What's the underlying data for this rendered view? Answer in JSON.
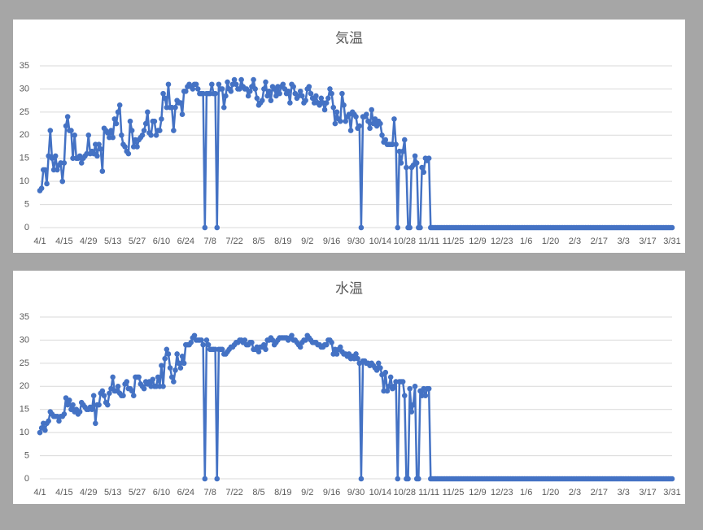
{
  "chart_data": [
    {
      "type": "line",
      "title": "気温",
      "color": "#4472c4",
      "ylim": [
        0,
        35
      ],
      "yticks": [
        0,
        5,
        10,
        15,
        20,
        25,
        30,
        35
      ],
      "grid": true,
      "categories": [
        "4/1",
        null,
        null,
        null,
        null,
        null,
        null,
        null,
        null,
        null,
        null,
        null,
        null,
        null,
        "4/15",
        null,
        null,
        null,
        null,
        null,
        null,
        null,
        null,
        null,
        null,
        null,
        null,
        null,
        "4/29",
        null,
        null,
        null,
        null,
        null,
        null,
        null,
        null,
        null,
        null,
        null,
        null,
        null,
        "5/13",
        null,
        null,
        null,
        null,
        null,
        null,
        null,
        null,
        null,
        null,
        null,
        null,
        null,
        "5/27",
        null,
        null,
        null,
        null,
        null,
        null,
        null,
        null,
        null,
        null,
        null,
        null,
        null,
        "6/10",
        null,
        null,
        null,
        null,
        null,
        null,
        null,
        null,
        null,
        null,
        null,
        null,
        null,
        "6/24",
        null,
        null,
        null,
        null,
        null,
        null,
        null,
        null,
        null,
        null,
        null,
        null,
        null,
        "7/8",
        null,
        null,
        null,
        null,
        null,
        null,
        null,
        null,
        null,
        null,
        null,
        null,
        null,
        "7/22",
        null,
        null,
        null,
        null,
        null,
        null,
        null,
        null,
        null,
        null,
        null,
        null,
        null,
        "8/5",
        null,
        null,
        null,
        null,
        null,
        null,
        null,
        null,
        null,
        null,
        null,
        null,
        null,
        "8/19",
        null,
        null,
        null,
        null,
        null,
        null,
        null,
        null,
        null,
        null,
        null,
        null,
        null,
        "9/2",
        null,
        null,
        null,
        null,
        null,
        null,
        null,
        null,
        null,
        null,
        null,
        null,
        null,
        "9/16",
        null,
        null,
        null,
        null,
        null,
        null,
        null,
        null,
        null,
        null,
        null,
        null,
        null,
        "9/30",
        null,
        null,
        null,
        null,
        null,
        null,
        null,
        null,
        null,
        null,
        null,
        null,
        null,
        "10/14",
        null,
        null,
        null,
        null,
        null,
        null,
        null,
        null,
        null,
        null,
        null,
        null,
        null,
        "10/28",
        null,
        null,
        null,
        null,
        null,
        null,
        null,
        null,
        null,
        null,
        null,
        null,
        null,
        "11/11",
        null,
        null,
        null,
        null,
        null,
        null,
        null,
        null,
        null,
        null,
        null,
        null,
        null,
        "11/25",
        null,
        null,
        null,
        null,
        null,
        null,
        null,
        null,
        null,
        null,
        null,
        null,
        null,
        "12/9",
        null,
        null,
        null,
        null,
        null,
        null,
        null,
        null,
        null,
        null,
        null,
        null,
        null,
        "12/23",
        null,
        null,
        null,
        null,
        null,
        null,
        null,
        null,
        null,
        null,
        null,
        null,
        null,
        "1/6",
        null,
        null,
        null,
        null,
        null,
        null,
        null,
        null,
        null,
        null,
        null,
        null,
        null,
        "1/20",
        null,
        null,
        null,
        null,
        null,
        null,
        null,
        null,
        null,
        null,
        null,
        null,
        null,
        "2/3",
        null,
        null,
        null,
        null,
        null,
        null,
        null,
        null,
        null,
        null,
        null,
        null,
        null,
        "2/17",
        null,
        null,
        null,
        null,
        null,
        null,
        null,
        null,
        null,
        null,
        null,
        null,
        null,
        "3/3",
        null,
        null,
        null,
        null,
        null,
        null,
        null,
        null,
        null,
        null,
        null,
        null,
        null,
        "3/17",
        null,
        null,
        null,
        null,
        null,
        null,
        null,
        null,
        null,
        null,
        null,
        null,
        null,
        "3/31"
      ],
      "values": [
        8,
        8.5,
        12.5,
        12.5,
        9.5,
        15.5,
        21,
        15,
        12.5,
        15.5,
        12.5,
        13.5,
        14,
        10,
        14,
        22,
        24,
        21,
        21,
        15,
        20,
        15,
        15,
        15.5,
        14,
        15,
        15.5,
        16,
        20,
        16,
        16.5,
        16,
        18,
        15.5,
        18,
        17,
        12.2,
        21.5,
        21,
        20.5,
        19.5,
        21,
        19.5,
        23.5,
        22.5,
        25,
        26.5,
        20,
        18,
        17.5,
        16.5,
        16,
        23,
        21,
        17.5,
        19,
        17.5,
        19,
        19.5,
        20,
        21,
        22.5,
        25,
        20.5,
        20,
        23,
        23,
        20,
        21,
        21,
        23.5,
        29,
        28,
        26,
        31,
        26,
        26,
        21,
        26,
        27.5,
        27,
        27,
        24.5,
        29.5,
        29.5,
        30.5,
        31,
        30.5,
        30,
        31,
        31,
        30,
        29,
        29,
        29,
        0,
        29,
        29,
        29,
        31,
        29,
        29,
        0,
        31,
        30,
        30,
        26,
        28.5,
        31.5,
        30,
        29.5,
        31,
        32,
        31,
        30,
        30,
        32,
        30.5,
        30,
        30,
        28.5,
        29.5,
        30.5,
        32,
        30,
        28,
        26.5,
        27,
        27.5,
        30,
        31.5,
        28.5,
        29.5,
        27.5,
        30.5,
        30,
        28.5,
        30.5,
        29,
        30.5,
        31,
        30,
        29,
        29.5,
        27,
        31,
        30.5,
        29,
        28,
        28.5,
        29.5,
        28.5,
        27,
        27.5,
        30,
        30.5,
        29,
        28,
        27,
        28.5,
        27,
        26.5,
        28,
        27,
        25.5,
        27,
        28,
        30,
        29,
        26,
        22.5,
        25,
        23.5,
        23,
        29,
        26.5,
        23,
        24,
        24.5,
        21,
        25,
        24.5,
        24,
        21.5,
        22,
        0,
        24,
        24,
        24.5,
        23,
        21.5,
        25.5,
        22.5,
        23.5,
        22,
        23,
        22.5,
        20,
        18.5,
        19,
        18,
        18,
        18,
        18,
        23.5,
        18,
        0,
        16.5,
        14,
        16.5,
        19,
        13,
        0,
        0,
        13,
        13.5,
        15.5,
        14,
        0,
        0,
        13,
        12,
        15,
        14.5,
        15,
        0,
        0,
        0,
        0,
        0,
        0,
        0,
        0,
        0,
        0,
        0,
        0,
        0,
        0,
        0,
        0,
        0,
        0,
        0,
        0,
        0,
        0,
        0,
        0,
        0,
        0,
        0,
        0,
        0,
        0,
        0,
        0,
        0,
        0,
        0,
        0,
        0,
        0,
        0,
        0,
        0,
        0,
        0,
        0,
        0,
        0,
        0,
        0,
        0,
        0,
        0,
        0,
        0,
        0,
        0,
        0,
        0,
        0,
        0,
        0,
        0,
        0,
        0,
        0,
        0,
        0,
        0,
        0,
        0,
        0,
        0,
        0,
        0,
        0,
        0,
        0,
        0,
        0,
        0,
        0,
        0,
        0,
        0,
        0,
        0,
        0,
        0,
        0,
        0,
        0,
        0,
        0,
        0,
        0,
        0,
        0,
        0,
        0,
        0,
        0,
        0,
        0,
        0,
        0,
        0,
        0,
        0,
        0,
        0,
        0,
        0,
        0,
        0,
        0,
        0,
        0,
        0,
        0,
        0,
        0,
        0,
        0,
        0,
        0,
        0,
        0,
        0,
        0,
        0,
        0,
        0,
        0,
        0,
        0,
        0,
        0,
        0,
        0,
        0,
        0
      ]
    },
    {
      "type": "line",
      "title": "水温",
      "color": "#4472c4",
      "ylim": [
        0,
        35
      ],
      "yticks": [
        0,
        5,
        10,
        15,
        20,
        25,
        30,
        35
      ],
      "grid": true,
      "categories": [
        "4/1",
        null,
        null,
        null,
        null,
        null,
        null,
        null,
        null,
        null,
        null,
        null,
        null,
        null,
        "4/15",
        null,
        null,
        null,
        null,
        null,
        null,
        null,
        null,
        null,
        null,
        null,
        null,
        null,
        "4/29",
        null,
        null,
        null,
        null,
        null,
        null,
        null,
        null,
        null,
        null,
        null,
        null,
        null,
        "5/13",
        null,
        null,
        null,
        null,
        null,
        null,
        null,
        null,
        null,
        null,
        null,
        null,
        null,
        "5/27",
        null,
        null,
        null,
        null,
        null,
        null,
        null,
        null,
        null,
        null,
        null,
        null,
        null,
        "6/10",
        null,
        null,
        null,
        null,
        null,
        null,
        null,
        null,
        null,
        null,
        null,
        null,
        null,
        "6/24",
        null,
        null,
        null,
        null,
        null,
        null,
        null,
        null,
        null,
        null,
        null,
        null,
        null,
        "7/8",
        null,
        null,
        null,
        null,
        null,
        null,
        null,
        null,
        null,
        null,
        null,
        null,
        null,
        "7/22",
        null,
        null,
        null,
        null,
        null,
        null,
        null,
        null,
        null,
        null,
        null,
        null,
        null,
        "8/5",
        null,
        null,
        null,
        null,
        null,
        null,
        null,
        null,
        null,
        null,
        null,
        null,
        null,
        "8/19",
        null,
        null,
        null,
        null,
        null,
        null,
        null,
        null,
        null,
        null,
        null,
        null,
        null,
        "9/2",
        null,
        null,
        null,
        null,
        null,
        null,
        null,
        null,
        null,
        null,
        null,
        null,
        null,
        "9/16",
        null,
        null,
        null,
        null,
        null,
        null,
        null,
        null,
        null,
        null,
        null,
        null,
        null,
        "9/30",
        null,
        null,
        null,
        null,
        null,
        null,
        null,
        null,
        null,
        null,
        null,
        null,
        null,
        "10/14",
        null,
        null,
        null,
        null,
        null,
        null,
        null,
        null,
        null,
        null,
        null,
        null,
        null,
        "10/28",
        null,
        null,
        null,
        null,
        null,
        null,
        null,
        null,
        null,
        null,
        null,
        null,
        null,
        "11/11",
        null,
        null,
        null,
        null,
        null,
        null,
        null,
        null,
        null,
        null,
        null,
        null,
        null,
        "11/25",
        null,
        null,
        null,
        null,
        null,
        null,
        null,
        null,
        null,
        null,
        null,
        null,
        null,
        "12/9",
        null,
        null,
        null,
        null,
        null,
        null,
        null,
        null,
        null,
        null,
        null,
        null,
        null,
        "12/23",
        null,
        null,
        null,
        null,
        null,
        null,
        null,
        null,
        null,
        null,
        null,
        null,
        null,
        "1/6",
        null,
        null,
        null,
        null,
        null,
        null,
        null,
        null,
        null,
        null,
        null,
        null,
        null,
        "1/20",
        null,
        null,
        null,
        null,
        null,
        null,
        null,
        null,
        null,
        null,
        null,
        null,
        null,
        "2/3",
        null,
        null,
        null,
        null,
        null,
        null,
        null,
        null,
        null,
        null,
        null,
        null,
        null,
        "2/17",
        null,
        null,
        null,
        null,
        null,
        null,
        null,
        null,
        null,
        null,
        null,
        null,
        null,
        "3/3",
        null,
        null,
        null,
        null,
        null,
        null,
        null,
        null,
        null,
        null,
        null,
        null,
        null,
        "3/17",
        null,
        null,
        null,
        null,
        null,
        null,
        null,
        null,
        null,
        null,
        null,
        null,
        null,
        "3/31"
      ],
      "values": [
        10,
        11,
        12,
        10.5,
        12,
        12.5,
        14.5,
        14,
        13.5,
        13.5,
        13.5,
        12.5,
        13.5,
        13.5,
        14,
        17.5,
        16,
        17,
        15,
        16,
        14.5,
        15,
        14,
        14.5,
        16.5,
        16,
        15.5,
        15,
        15,
        15.5,
        15,
        18,
        12,
        16,
        16,
        18.5,
        19,
        18,
        16.5,
        16,
        18.5,
        19.5,
        22,
        19,
        19,
        20,
        18.5,
        18,
        18,
        20.5,
        21,
        19.5,
        19.5,
        19,
        18,
        22,
        22,
        22,
        20.5,
        20,
        19.5,
        21,
        20.5,
        21,
        20,
        21.5,
        20,
        20,
        22,
        20,
        24.5,
        20,
        26,
        28,
        27,
        24,
        22,
        21,
        23.5,
        27,
        25,
        24,
        26.5,
        25,
        29,
        29,
        29,
        29.5,
        30.5,
        31,
        30,
        30,
        30,
        30,
        29,
        0,
        30,
        29,
        28,
        28,
        28,
        28,
        0,
        28,
        28,
        28,
        27,
        27,
        27.5,
        28,
        28.5,
        28.5,
        29,
        29.5,
        29.5,
        30,
        30,
        29.5,
        30,
        29,
        29,
        29.5,
        29.5,
        28,
        28,
        28.5,
        27.5,
        28.5,
        28.5,
        29,
        28,
        30,
        30,
        30.5,
        30,
        29,
        29.5,
        30,
        30.5,
        30.5,
        30.5,
        30.5,
        30.5,
        30,
        30.5,
        31,
        30,
        30,
        29.5,
        29,
        28.5,
        29.5,
        30,
        30,
        31,
        30.5,
        30,
        29.5,
        29.5,
        29.5,
        29,
        29,
        28.5,
        28.5,
        29,
        29,
        30,
        30,
        29.5,
        27,
        28,
        27,
        28,
        28.5,
        27.5,
        27,
        27,
        26.5,
        27,
        26,
        26.5,
        26,
        27,
        26,
        25,
        0,
        25.5,
        25.5,
        25,
        25,
        24.5,
        25,
        24.5,
        24,
        23.5,
        25,
        24,
        22.5,
        19,
        23,
        19,
        20,
        22,
        19.5,
        20,
        21,
        0,
        21,
        21,
        21,
        18,
        0,
        0,
        19.5,
        14.5,
        16,
        20,
        0,
        0,
        19,
        18,
        19.5,
        18,
        19.5,
        19.5,
        0,
        0,
        0,
        0,
        0,
        0,
        0,
        0,
        0,
        0,
        0,
        0,
        0,
        0,
        0,
        0,
        0,
        0,
        0,
        0,
        0,
        0,
        0,
        0,
        0,
        0,
        0,
        0,
        0,
        0,
        0,
        0,
        0,
        0,
        0,
        0,
        0,
        0,
        0,
        0,
        0,
        0,
        0,
        0,
        0,
        0,
        0,
        0,
        0,
        0,
        0,
        0,
        0,
        0,
        0,
        0,
        0,
        0,
        0,
        0,
        0,
        0,
        0,
        0,
        0,
        0,
        0,
        0,
        0,
        0,
        0,
        0,
        0,
        0,
        0,
        0,
        0,
        0,
        0,
        0,
        0,
        0,
        0,
        0,
        0,
        0,
        0,
        0,
        0,
        0,
        0,
        0,
        0,
        0,
        0,
        0,
        0,
        0,
        0,
        0,
        0,
        0,
        0,
        0,
        0,
        0,
        0,
        0,
        0,
        0,
        0,
        0,
        0,
        0,
        0,
        0,
        0,
        0,
        0,
        0,
        0,
        0,
        0,
        0,
        0,
        0,
        0,
        0,
        0,
        0,
        0,
        0,
        0,
        0,
        0,
        0,
        0,
        0,
        0,
        0
      ]
    }
  ]
}
